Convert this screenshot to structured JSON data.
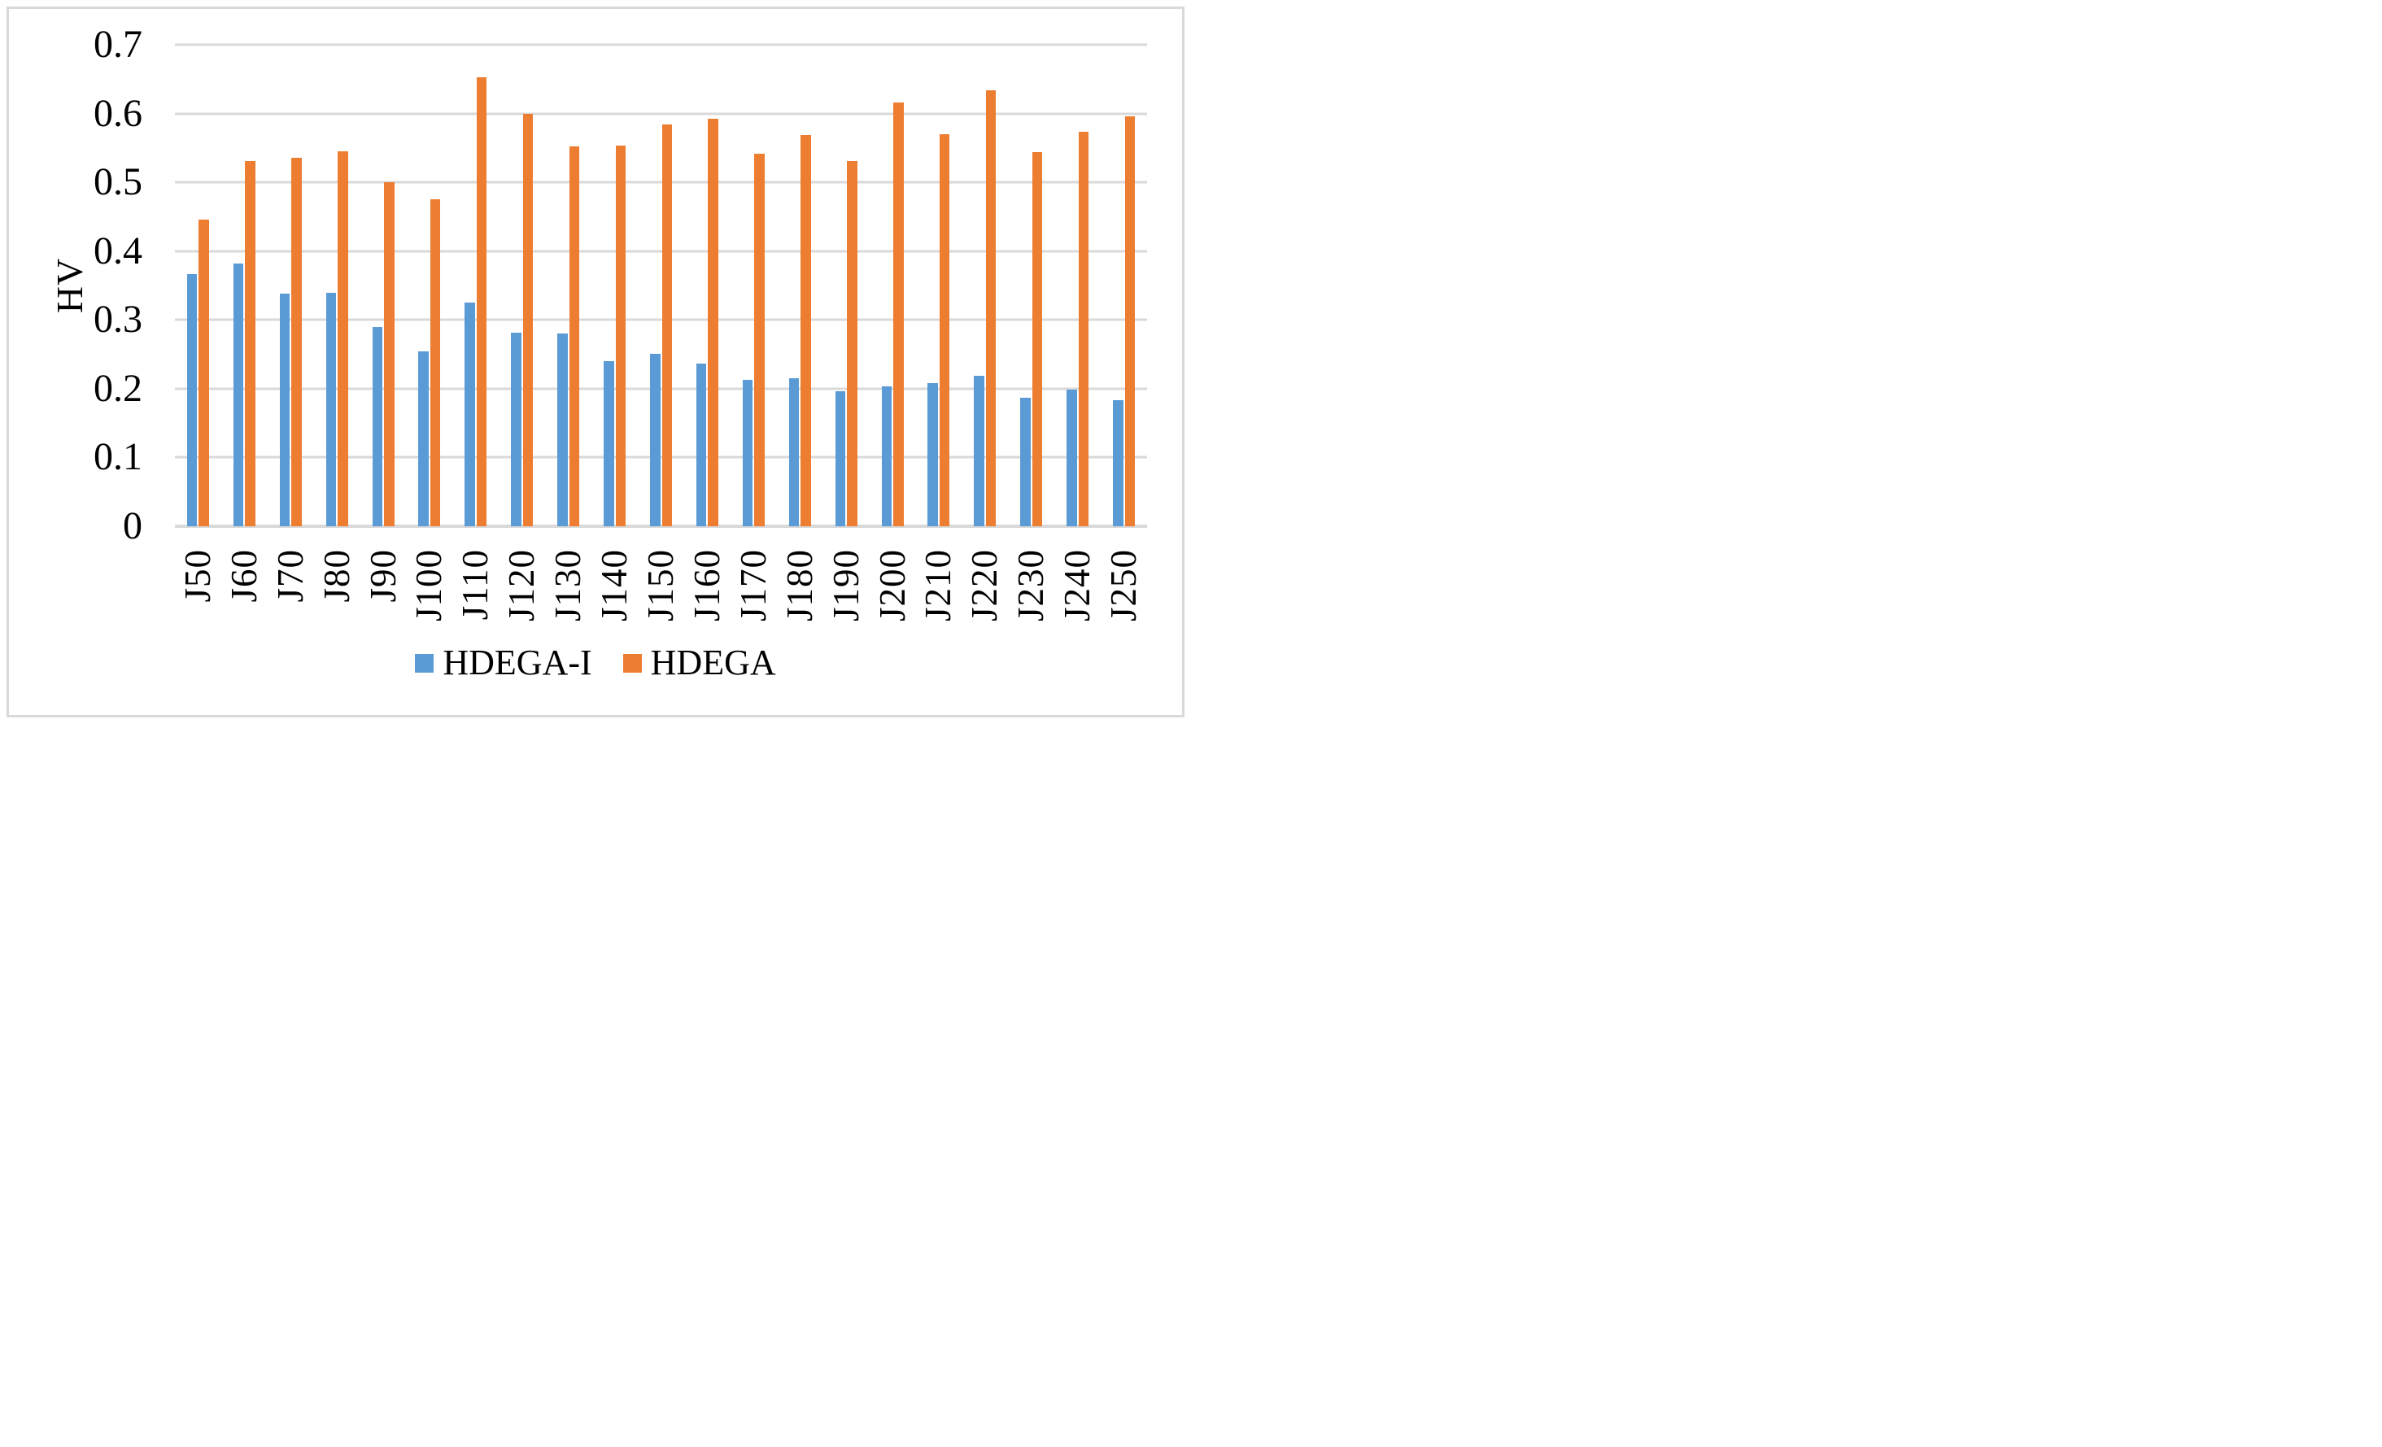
{
  "figure": {
    "background": "#ffffff",
    "border_color": "#d9d9d9"
  },
  "chart_data": {
    "type": "bar",
    "title": "",
    "xlabel": "",
    "ylabel": "HV",
    "categories": [
      "J50",
      "J60",
      "J70",
      "J80",
      "J90",
      "J100",
      "J110",
      "J120",
      "J130",
      "J140",
      "J150",
      "J160",
      "J170",
      "J180",
      "J190",
      "J200",
      "J210",
      "J220",
      "J230",
      "J240",
      "J250"
    ],
    "series": [
      {
        "name": "HDEGA-I",
        "color": "#5b9bd5",
        "values": [
          0.367,
          0.382,
          0.338,
          0.339,
          0.29,
          0.254,
          0.325,
          0.282,
          0.28,
          0.24,
          0.251,
          0.237,
          0.213,
          0.215,
          0.196,
          0.203,
          0.208,
          0.219,
          0.187,
          0.199,
          0.183
        ]
      },
      {
        "name": "HDEGA",
        "color": "#ed7d31",
        "values": [
          0.446,
          0.531,
          0.536,
          0.545,
          0.5,
          0.475,
          0.653,
          0.599,
          0.552,
          0.553,
          0.584,
          0.593,
          0.541,
          0.569,
          0.531,
          0.616,
          0.57,
          0.634,
          0.544,
          0.574,
          0.596
        ]
      }
    ],
    "ylim": [
      0,
      0.7
    ],
    "ytick_step": 0.1,
    "ytick_labels": [
      "0.7",
      "0.6",
      "0.5",
      "0.4",
      "0.3",
      "0.2",
      "0.1",
      "0"
    ],
    "grid": "horizontal",
    "gridline_color": "#d9d9d9",
    "axis_line_color": "#d9d9d9",
    "legend_position": "bottom",
    "xlabel_rotation": 90
  },
  "legend": {
    "items": [
      {
        "label": "HDEGA-I",
        "color": "#5b9bd5"
      },
      {
        "label": "HDEGA",
        "color": "#ed7d31"
      }
    ]
  }
}
